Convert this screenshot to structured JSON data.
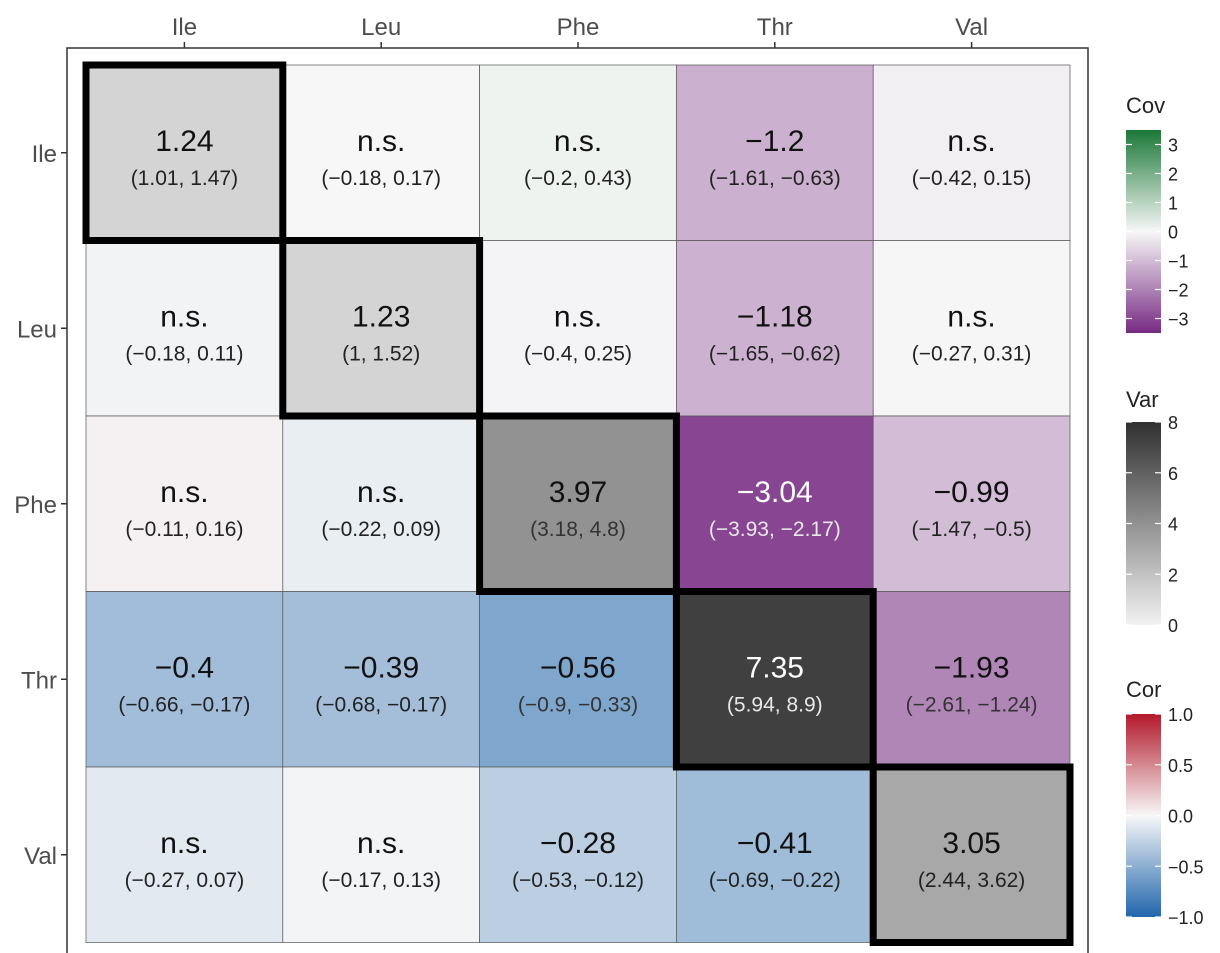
{
  "chart_data": {
    "type": "heatmap",
    "title": "",
    "xlabel": "",
    "ylabel": "",
    "x_categories": [
      "Ile",
      "Leu",
      "Phe",
      "Thr",
      "Val"
    ],
    "y_categories": [
      "Ile",
      "Leu",
      "Phe",
      "Thr",
      "Val"
    ],
    "cells": [
      [
        {
          "scale": "var",
          "label": "1.24",
          "value": 1.24,
          "ci": "(1.01, 1.47)"
        },
        {
          "scale": "cov",
          "label": "n.s.",
          "value": 0.0,
          "ci": "(−0.18, 0.17)"
        },
        {
          "scale": "cov",
          "label": "n.s.",
          "value": 0.12,
          "ci": "(−0.2, 0.43)"
        },
        {
          "scale": "cov",
          "label": "−1.2",
          "value": -1.2,
          "ci": "(−1.61, −0.63)"
        },
        {
          "scale": "cov",
          "label": "n.s.",
          "value": -0.13,
          "ci": "(−0.42, 0.15)"
        }
      ],
      [
        {
          "scale": "cor",
          "label": "n.s.",
          "value": -0.03,
          "ci": "(−0.18, 0.11)"
        },
        {
          "scale": "var",
          "label": "1.23",
          "value": 1.23,
          "ci": "(1, 1.52)"
        },
        {
          "scale": "cov",
          "label": "n.s.",
          "value": -0.07,
          "ci": "(−0.4, 0.25)"
        },
        {
          "scale": "cov",
          "label": "−1.18",
          "value": -1.18,
          "ci": "(−1.65, −0.62)"
        },
        {
          "scale": "cov",
          "label": "n.s.",
          "value": 0.02,
          "ci": "(−0.27, 0.31)"
        }
      ],
      [
        {
          "scale": "cor",
          "label": "n.s.",
          "value": 0.025,
          "ci": "(−0.11, 0.16)"
        },
        {
          "scale": "cor",
          "label": "n.s.",
          "value": -0.065,
          "ci": "(−0.22, 0.09)"
        },
        {
          "scale": "var",
          "label": "3.97",
          "value": 3.97,
          "ci": "(3.18, 4.8)"
        },
        {
          "scale": "cov",
          "label": "−3.04",
          "value": -3.04,
          "ci": "(−3.93, −2.17)"
        },
        {
          "scale": "cov",
          "label": "−0.99",
          "value": -0.99,
          "ci": "(−1.47, −0.5)"
        }
      ],
      [
        {
          "scale": "cor",
          "label": "−0.4",
          "value": -0.4,
          "ci": "(−0.66, −0.17)"
        },
        {
          "scale": "cor",
          "label": "−0.39",
          "value": -0.39,
          "ci": "(−0.68, −0.17)"
        },
        {
          "scale": "cor",
          "label": "−0.56",
          "value": -0.56,
          "ci": "(−0.9, −0.33)"
        },
        {
          "scale": "var",
          "label": "7.35",
          "value": 7.35,
          "ci": "(5.94, 8.9)"
        },
        {
          "scale": "cov",
          "label": "−1.93",
          "value": -1.93,
          "ci": "(−2.61, −1.24)"
        }
      ],
      [
        {
          "scale": "cor",
          "label": "n.s.",
          "value": -0.1,
          "ci": "(−0.27, 0.07)"
        },
        {
          "scale": "cor",
          "label": "n.s.",
          "value": -0.02,
          "ci": "(−0.17, 0.13)"
        },
        {
          "scale": "cor",
          "label": "−0.28",
          "value": -0.28,
          "ci": "(−0.53, −0.12)"
        },
        {
          "scale": "cor",
          "label": "−0.41",
          "value": -0.41,
          "ci": "(−0.69, −0.22)"
        },
        {
          "scale": "var",
          "label": "3.05",
          "value": 3.05,
          "ci": "(2.44, 3.62)"
        }
      ]
    ],
    "legends": {
      "cov": {
        "title": "Cov",
        "min": -3.5,
        "max": 3.5,
        "ticks": [
          3,
          2,
          1,
          0,
          -1,
          -2,
          -3
        ],
        "tick_labels": [
          "3",
          "2",
          "1",
          "0",
          "−1",
          "−2",
          "−3"
        ],
        "colors": {
          "low": "#762a83",
          "mid": "#f7f7f7",
          "high": "#1b7837"
        }
      },
      "var": {
        "title": "Var",
        "min": 0,
        "max": 8,
        "ticks": [
          8,
          6,
          4,
          2,
          0
        ],
        "tick_labels": [
          "8",
          "6",
          "4",
          "2",
          "0"
        ],
        "colors": {
          "low": "#f2f2f2",
          "high": "#303030"
        }
      },
      "cor": {
        "title": "Cor",
        "min": -1,
        "max": 1,
        "ticks": [
          1,
          0.5,
          0,
          -0.5,
          -1
        ],
        "tick_labels": [
          "1.0",
          "0.5",
          "0.0",
          "−0.5",
          "−1.0"
        ],
        "colors": {
          "low": "#2166ac",
          "mid": "#f7f7f7",
          "high": "#b2182b"
        }
      }
    },
    "diagonal_outline": true,
    "grid": false
  }
}
